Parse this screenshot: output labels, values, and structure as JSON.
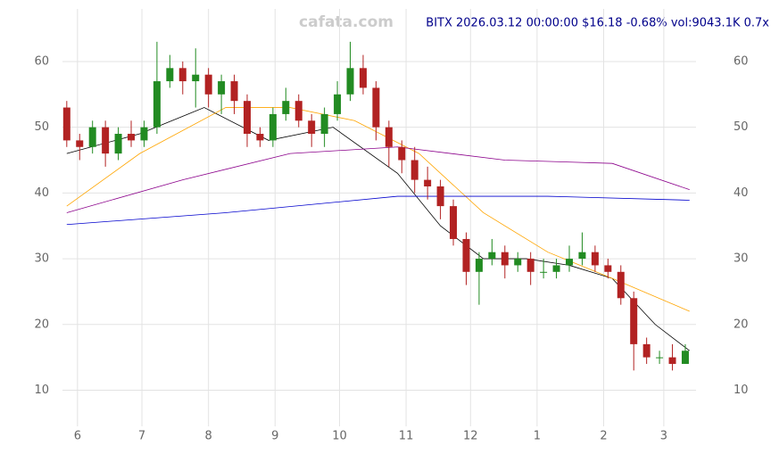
{
  "chart_data": {
    "type": "candlestick",
    "watermark": "cafata.com",
    "title": "BITX 2026.03.12 00:00:00 $16.18 -0.68% vol:9043.1K 0.7x",
    "x": [
      26,
      32,
      38,
      44,
      50,
      56,
      62,
      68,
      74,
      80,
      86,
      92,
      98,
      104,
      110,
      116,
      122,
      128,
      134,
      140,
      146,
      152,
      158,
      164,
      170,
      176,
      182,
      188,
      194,
      200,
      206,
      212,
      218,
      224,
      230,
      236,
      242,
      248,
      254,
      260,
      266,
      272,
      278,
      284,
      290,
      296,
      302,
      308,
      314
    ],
    "open": [
      53,
      48,
      47,
      50,
      46,
      49,
      48,
      50,
      57,
      59,
      57,
      58,
      55,
      57,
      54,
      49,
      48,
      52,
      54,
      51,
      49,
      52,
      55,
      59,
      56,
      50,
      47,
      45,
      42,
      41,
      38,
      33,
      28,
      30,
      31,
      29,
      30,
      28,
      28,
      29,
      30,
      31,
      29,
      28,
      24,
      17,
      15,
      15,
      14
    ],
    "high": [
      54,
      49,
      51,
      51,
      50,
      51,
      51,
      63,
      61,
      60,
      62,
      59,
      58,
      58,
      55,
      50,
      53,
      56,
      55,
      52,
      53,
      57,
      63,
      61,
      57,
      51,
      48,
      47,
      44,
      42,
      39,
      34,
      31,
      33,
      32,
      31,
      31,
      30,
      30,
      32,
      34,
      32,
      30,
      29,
      25,
      18,
      16,
      17,
      17
    ],
    "low": [
      47,
      45,
      46,
      44,
      45,
      47,
      47,
      49,
      56,
      55,
      53,
      53,
      52,
      52,
      47,
      47,
      47,
      51,
      50,
      47,
      47,
      51,
      54,
      55,
      48,
      44,
      43,
      40,
      39,
      36,
      32,
      26,
      23,
      29,
      27,
      28,
      26,
      27,
      27,
      28,
      29,
      28,
      27,
      23,
      13,
      14,
      14,
      13,
      14
    ],
    "close": [
      48,
      47,
      50,
      46,
      49,
      48,
      50,
      57,
      59,
      57,
      58,
      55,
      57,
      54,
      49,
      48,
      52,
      54,
      51,
      49,
      52,
      55,
      59,
      56,
      50,
      47,
      45,
      42,
      41,
      38,
      33,
      28,
      30,
      31,
      29,
      30,
      28,
      28,
      29,
      30,
      31,
      29,
      28,
      24,
      17,
      15,
      15,
      14,
      16
    ],
    "up_color": "#228b22",
    "down_color": "#b22222",
    "lines": [
      {
        "color": "#000000",
        "x": [
          26,
          60,
          90,
          120,
          150,
          180,
          200,
          220,
          240,
          260,
          280,
          300,
          316
        ],
        "values": [
          46,
          49,
          53,
          48,
          50,
          43,
          35,
          30,
          30,
          29,
          27,
          20,
          16
        ]
      },
      {
        "color": "#ffa500",
        "x": [
          26,
          60,
          100,
          130,
          160,
          190,
          220,
          250,
          280,
          316
        ],
        "values": [
          38,
          46,
          53,
          53,
          51,
          46,
          37,
          31,
          27,
          22
        ]
      },
      {
        "color": "#8b008b",
        "x": [
          26,
          80,
          130,
          180,
          230,
          280,
          316
        ],
        "values": [
          37,
          42,
          46,
          47,
          45,
          44.5,
          40.5
        ]
      },
      {
        "color": "#0000cd",
        "x": [
          26,
          100,
          180,
          250,
          316
        ],
        "values": [
          35.2,
          37,
          39.5,
          39.5,
          38.9
        ]
      }
    ],
    "xlim": [
      24,
      319
    ],
    "xticks": [
      {
        "value": 31,
        "label": "6"
      },
      {
        "value": 61,
        "label": "7"
      },
      {
        "value": 92,
        "label": "8"
      },
      {
        "value": 123,
        "label": "9"
      },
      {
        "value": 153,
        "label": "10"
      },
      {
        "value": 184,
        "label": "11"
      },
      {
        "value": 214,
        "label": "12"
      },
      {
        "value": 245,
        "label": "1"
      },
      {
        "value": 276,
        "label": "2"
      },
      {
        "value": 304,
        "label": "3"
      }
    ],
    "ylim": [
      4.5,
      68
    ],
    "yticks": [
      10,
      20,
      30,
      40,
      50,
      60
    ],
    "grid": true
  }
}
